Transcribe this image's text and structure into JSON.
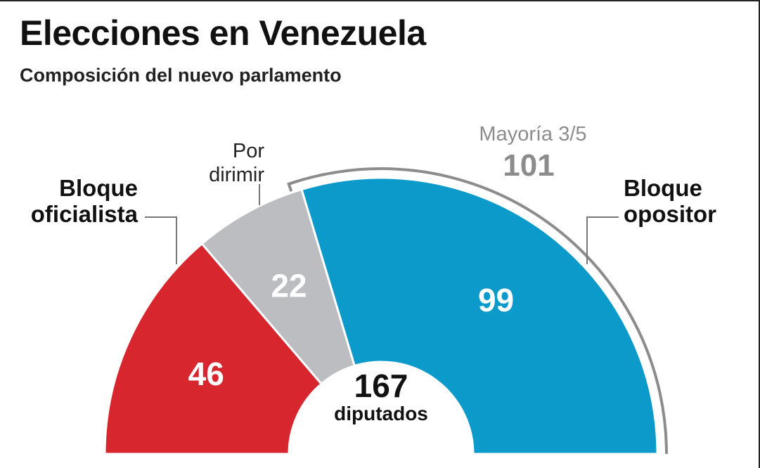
{
  "title": "Elecciones en Venezuela",
  "subtitle": "Composición del nuevo parlamento",
  "chart_data": {
    "type": "pie",
    "variant": "half-donut",
    "total": 167,
    "total_label": "167",
    "total_caption": "diputados",
    "series": [
      {
        "name": "Bloque oficialista",
        "label_lines": [
          "Bloque",
          "oficialista"
        ],
        "value": 46,
        "color": "#d8262f"
      },
      {
        "name": "Por dirimir",
        "label_lines": [
          "Por",
          "dirimir"
        ],
        "value": 22,
        "color": "#bcbdc0"
      },
      {
        "name": "Bloque opositor",
        "label_lines": [
          "Bloque",
          "opositor"
        ],
        "value": 99,
        "color": "#0b9ac9"
      }
    ],
    "threshold": {
      "label": "Mayoría 3/5",
      "value_label": "101",
      "value": 101
    }
  }
}
